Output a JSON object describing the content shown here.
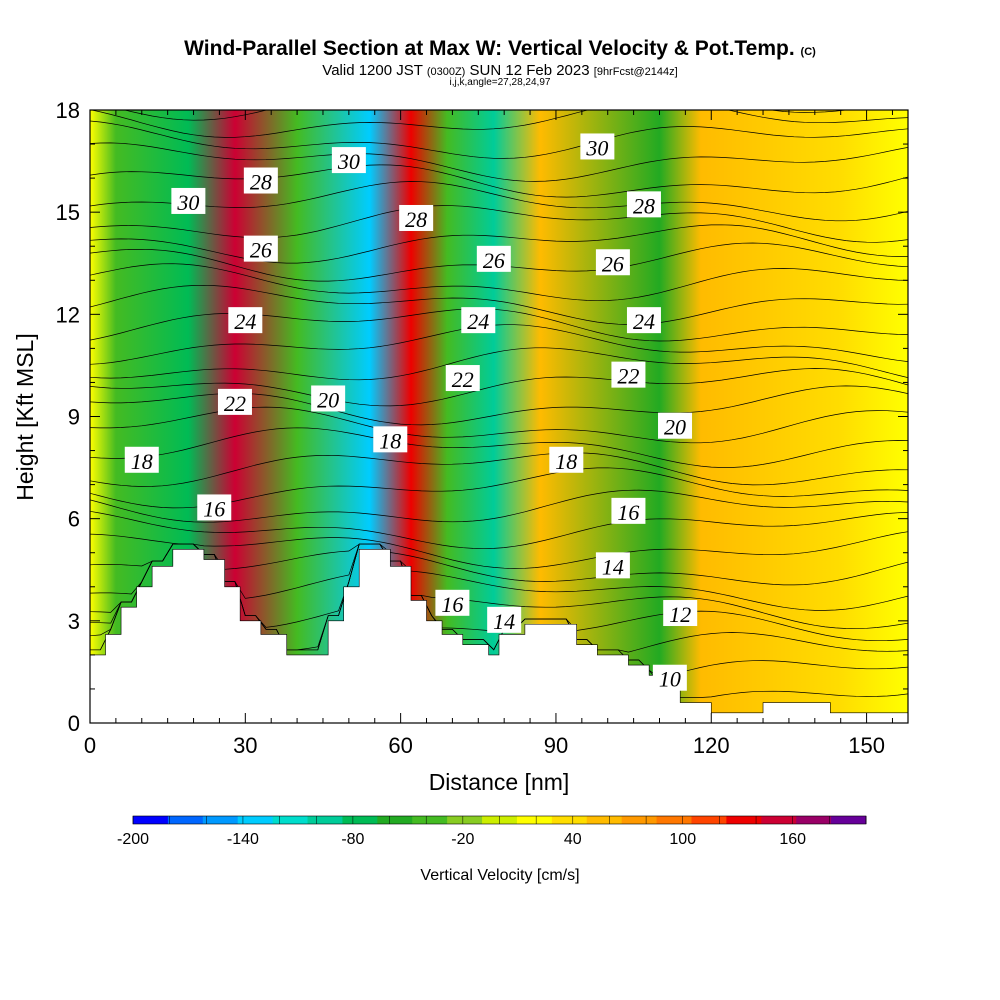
{
  "header": {
    "title": "Wind-Parallel Section at Max W: Vertical Velocity & Pot.Temp.",
    "copyright": "(C)",
    "valid_prefix": "Valid 1200 JST",
    "valid_utc": "(0300Z)",
    "valid_date": "SUN 12 Feb 2023",
    "forecast": "[9hrFcst@2144z]",
    "indices": "i,j,k,angle=27,28,24,97"
  },
  "chart_data": {
    "type": "heatmap",
    "xlabel": "Distance [nm]",
    "ylabel": "Height [Kft MSL]",
    "xlim": [
      0,
      158
    ],
    "ylim": [
      0,
      18
    ],
    "x_ticks": [
      0,
      30,
      60,
      90,
      120,
      150
    ],
    "y_ticks": [
      0,
      3,
      6,
      9,
      12,
      15,
      18
    ],
    "colorbar": {
      "label": "Vertical Velocity [cm/s]",
      "tick_labels": [
        "-200",
        "-140",
        "-80",
        "-20",
        "40",
        "100",
        "160"
      ],
      "tick_values": [
        -200,
        -140,
        -80,
        -20,
        40,
        100,
        160
      ],
      "range": [
        -200,
        200
      ],
      "colors": [
        "#0000ff",
        "#0066ff",
        "#0099ff",
        "#00ccff",
        "#00ddcc",
        "#00cc99",
        "#00bb55",
        "#22aa22",
        "#44bb22",
        "#88cc22",
        "#ccee00",
        "#ffff00",
        "#ffdd00",
        "#ffbb00",
        "#ff9900",
        "#ff7700",
        "#ff4400",
        "#ee0000",
        "#cc0033",
        "#990066",
        "#660099"
      ]
    },
    "velocity_bands": [
      {
        "x": 5,
        "value": -40
      },
      {
        "x": 19,
        "value": -70
      },
      {
        "x": 28,
        "value": 150
      },
      {
        "x": 40,
        "value": -40
      },
      {
        "x": 54,
        "value": -140
      },
      {
        "x": 62,
        "value": 130
      },
      {
        "x": 69,
        "value": -40
      },
      {
        "x": 78,
        "value": -90
      },
      {
        "x": 87,
        "value": 60
      },
      {
        "x": 110,
        "value": -50
      },
      {
        "x": 118,
        "value": 50
      },
      {
        "x": 145,
        "value": 30
      }
    ],
    "terrain": [
      {
        "x": 0,
        "h": 2.0
      },
      {
        "x": 3,
        "h": 2.6
      },
      {
        "x": 6,
        "h": 3.4
      },
      {
        "x": 9,
        "h": 4.0
      },
      {
        "x": 12,
        "h": 4.6
      },
      {
        "x": 16,
        "h": 5.1
      },
      {
        "x": 22,
        "h": 4.8
      },
      {
        "x": 26,
        "h": 4.0
      },
      {
        "x": 29,
        "h": 3.0
      },
      {
        "x": 33,
        "h": 2.6
      },
      {
        "x": 38,
        "h": 2.0
      },
      {
        "x": 43,
        "h": 2.0
      },
      {
        "x": 46,
        "h": 3.0
      },
      {
        "x": 49,
        "h": 4.0
      },
      {
        "x": 52,
        "h": 5.1
      },
      {
        "x": 58,
        "h": 4.6
      },
      {
        "x": 62,
        "h": 3.6
      },
      {
        "x": 65,
        "h": 3.0
      },
      {
        "x": 68,
        "h": 2.6
      },
      {
        "x": 72,
        "h": 2.3
      },
      {
        "x": 77,
        "h": 2.0
      },
      {
        "x": 79,
        "h": 2.6
      },
      {
        "x": 84,
        "h": 2.9
      },
      {
        "x": 94,
        "h": 2.3
      },
      {
        "x": 98,
        "h": 2.0
      },
      {
        "x": 104,
        "h": 1.7
      },
      {
        "x": 108,
        "h": 1.4
      },
      {
        "x": 110,
        "h": 1.0
      },
      {
        "x": 114,
        "h": 0.6
      },
      {
        "x": 120,
        "h": 0.3
      },
      {
        "x": 130,
        "h": 0.6
      },
      {
        "x": 143,
        "h": 0.3
      },
      {
        "x": 158,
        "h": 0.3
      }
    ],
    "contour_labels": [
      {
        "text": "30",
        "x": 19,
        "y": 15.3
      },
      {
        "text": "28",
        "x": 33,
        "y": 15.9
      },
      {
        "text": "26",
        "x": 33,
        "y": 13.9
      },
      {
        "text": "24",
        "x": 30,
        "y": 11.8
      },
      {
        "text": "22",
        "x": 28,
        "y": 9.4
      },
      {
        "text": "20",
        "x": 46,
        "y": 9.5
      },
      {
        "text": "18",
        "x": 10,
        "y": 7.7
      },
      {
        "text": "16",
        "x": 24,
        "y": 6.3
      },
      {
        "text": "30",
        "x": 50,
        "y": 16.5
      },
      {
        "text": "28",
        "x": 63,
        "y": 14.8
      },
      {
        "text": "18",
        "x": 58,
        "y": 8.3
      },
      {
        "text": "26",
        "x": 78,
        "y": 13.6
      },
      {
        "text": "24",
        "x": 75,
        "y": 11.8
      },
      {
        "text": "22",
        "x": 72,
        "y": 10.1
      },
      {
        "text": "16",
        "x": 70,
        "y": 3.5
      },
      {
        "text": "14",
        "x": 80,
        "y": 3.0
      },
      {
        "text": "30",
        "x": 98,
        "y": 16.9
      },
      {
        "text": "28",
        "x": 107,
        "y": 15.2
      },
      {
        "text": "26",
        "x": 101,
        "y": 13.5
      },
      {
        "text": "24",
        "x": 107,
        "y": 11.8
      },
      {
        "text": "22",
        "x": 104,
        "y": 10.2
      },
      {
        "text": "20",
        "x": 113,
        "y": 8.7
      },
      {
        "text": "18",
        "x": 92,
        "y": 7.7
      },
      {
        "text": "16",
        "x": 104,
        "y": 6.2
      },
      {
        "text": "14",
        "x": 101,
        "y": 4.6
      },
      {
        "text": "12",
        "x": 114,
        "y": 3.2
      },
      {
        "text": "10",
        "x": 112,
        "y": 1.3
      }
    ]
  }
}
